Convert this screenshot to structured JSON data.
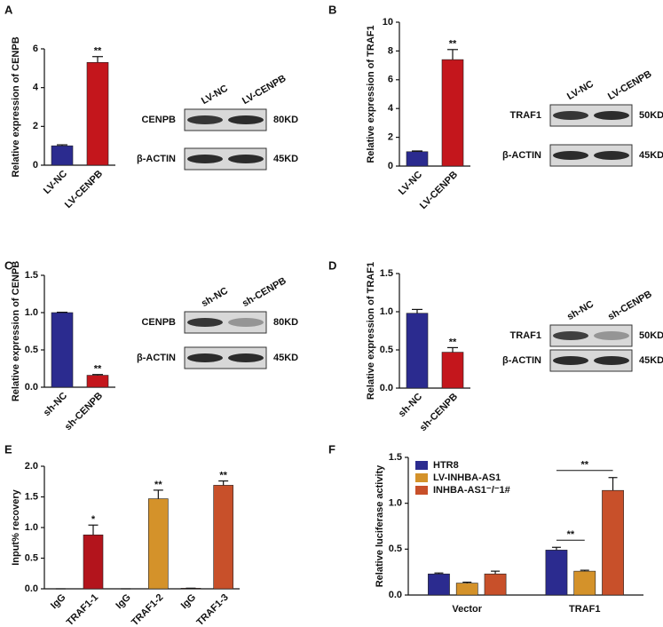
{
  "chart_data": [
    {
      "type": "bar",
      "panel": "A",
      "y_label": "Relative expression of CENPB",
      "categories": [
        "LV-NC",
        "LV-CENPB"
      ],
      "values": [
        1.0,
        5.3
      ],
      "errors": [
        0.05,
        0.3
      ],
      "colors": [
        "#2b2b8f",
        "#c4161c"
      ],
      "ylim": [
        0,
        6
      ],
      "yticks": [
        0,
        2,
        4,
        6
      ],
      "annotations": [
        {
          "text": "**",
          "category": "LV-CENPB"
        }
      ],
      "blot": {
        "lanes": [
          "LV-NC",
          "LV-CENPB"
        ],
        "rows": [
          {
            "label": "CENPB",
            "size": "80KD"
          },
          {
            "label": "β-ACTIN",
            "size": "45KD"
          }
        ]
      }
    },
    {
      "type": "bar",
      "panel": "B",
      "y_label": "Relative expression of TRAF1",
      "categories": [
        "LV-NC",
        "LV-CENPB"
      ],
      "values": [
        1.0,
        7.4
      ],
      "errors": [
        0.05,
        0.7
      ],
      "colors": [
        "#2b2b8f",
        "#c4161c"
      ],
      "ylim": [
        0,
        10
      ],
      "yticks": [
        0,
        2,
        4,
        6,
        8,
        10
      ],
      "annotations": [
        {
          "text": "**",
          "category": "LV-CENPB"
        }
      ],
      "blot": {
        "lanes": [
          "LV-NC",
          "LV-CENPB"
        ],
        "rows": [
          {
            "label": "TRAF1",
            "size": "50KD"
          },
          {
            "label": "β-ACTIN",
            "size": "45KD"
          }
        ]
      }
    },
    {
      "type": "bar",
      "panel": "C",
      "y_label": "Relative expression of CENPB",
      "categories": [
        "sh-NC",
        "sh-CENPB"
      ],
      "values": [
        1.0,
        0.16
      ],
      "errors": [
        0.005,
        0.01
      ],
      "colors": [
        "#2b2b8f",
        "#c4161c"
      ],
      "ylim": [
        0,
        1.5
      ],
      "yticks": [
        {
          "value": 0,
          "label": "0.0"
        },
        0.5,
        {
          "value": 1,
          "label": "1.0"
        },
        1.5
      ],
      "annotations": [
        {
          "text": "**",
          "category": "sh-CENPB"
        }
      ],
      "blot": {
        "lanes": [
          "sh-NC",
          "sh-CENPB"
        ],
        "rows": [
          {
            "label": "CENPB",
            "size": "80KD"
          },
          {
            "label": "β-ACTIN",
            "size": "45KD"
          }
        ]
      }
    },
    {
      "type": "bar",
      "panel": "D",
      "y_label": "Relative expression of TRAF1",
      "categories": [
        "sh-NC",
        "sh-CENPB"
      ],
      "values": [
        0.98,
        0.47
      ],
      "errors": [
        0.05,
        0.06
      ],
      "colors": [
        "#2b2b8f",
        "#c4161c"
      ],
      "ylim": [
        0,
        1.5
      ],
      "yticks": [
        {
          "value": 0,
          "label": "0.0"
        },
        0.5,
        {
          "value": 1,
          "label": "1.0"
        },
        1.5
      ],
      "annotations": [
        {
          "text": "**",
          "category": "sh-CENPB"
        }
      ],
      "blot": {
        "lanes": [
          "sh-NC",
          "sh-CENPB"
        ],
        "rows": [
          {
            "label": "TRAF1",
            "size": "50KD"
          },
          {
            "label": "β-ACTIN",
            "size": "45KD"
          }
        ]
      }
    },
    {
      "type": "bar",
      "panel": "E",
      "y_label": "Input% recovery",
      "categories": [
        "IgG",
        "TRAF1-1",
        "IgG",
        "TRAF1-2",
        "IgG",
        "TRAF1-3"
      ],
      "values": [
        0,
        0.88,
        0,
        1.47,
        0.01,
        1.69
      ],
      "errors": [
        0,
        0.16,
        0,
        0.14,
        0,
        0.07
      ],
      "colors": [
        "#b3141c",
        "#b3141c",
        "#d4922a",
        "#d4922a",
        "#c8502a",
        "#c8502a"
      ],
      "ylim": [
        0,
        2
      ],
      "yticks": [
        {
          "value": 0,
          "label": "0.0"
        },
        0.5,
        {
          "value": 1,
          "label": "1.0"
        },
        1.5,
        {
          "value": 2,
          "label": "2.0"
        }
      ],
      "annotations": [
        {
          "text": "*",
          "category": "TRAF1-1"
        },
        {
          "text": "**",
          "category": "TRAF1-2"
        },
        {
          "text": "**",
          "category": "TRAF1-3"
        }
      ]
    },
    {
      "type": "grouped_bar",
      "panel": "F",
      "y_label": "Relative luciferase activity",
      "categories": [
        "Vector",
        "TRAF1"
      ],
      "series": [
        {
          "name": "HTR8",
          "color": "#2b2b8f",
          "values": [
            0.23,
            0.49
          ],
          "errors": [
            0.01,
            0.03
          ]
        },
        {
          "name": "LV-INHBA-AS1",
          "color": "#d4922a",
          "values": [
            0.13,
            0.26
          ],
          "errors": [
            0.01,
            0.01
          ]
        },
        {
          "name": "INHBA-AS1⁻/⁻1#",
          "color": "#c8502a",
          "values": [
            0.23,
            1.14
          ],
          "errors": [
            0.03,
            0.14
          ]
        }
      ],
      "ylim": [
        0,
        1.5
      ],
      "yticks": [
        {
          "value": 0,
          "label": "0.0"
        },
        0.5,
        {
          "value": 1,
          "label": "1.0"
        },
        1.5
      ],
      "legend": "upper left",
      "annotations": [
        {
          "text": "**",
          "category": "TRAF1",
          "series": [
            "HTR8",
            "LV-INHBA-AS1"
          ]
        },
        {
          "text": "**",
          "category": "TRAF1",
          "series": [
            "HTR8",
            "INHBA-AS1⁻/⁻1#"
          ]
        }
      ]
    }
  ]
}
